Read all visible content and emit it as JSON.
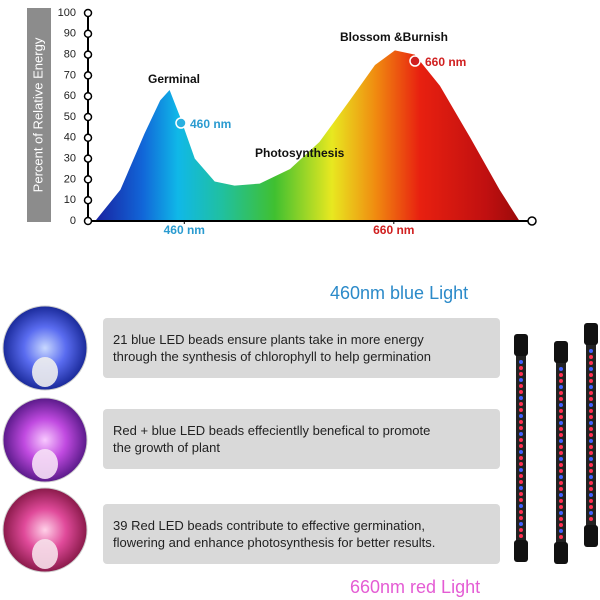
{
  "chart_data": {
    "type": "area",
    "ylabel": "Percent of Relative Energy",
    "x": [
      375,
      399,
      422,
      437,
      446,
      456,
      470,
      489,
      508,
      532,
      561,
      589,
      618,
      642,
      661,
      680,
      704,
      733,
      761,
      780
    ],
    "values": [
      0,
      15,
      42,
      58,
      63,
      50,
      30,
      19,
      17,
      18,
      25,
      38,
      58,
      75,
      82,
      80,
      65,
      40,
      15,
      0
    ],
    "xlim": [
      370,
      790
    ],
    "ylim": [
      0,
      100
    ],
    "yticks": [
      0,
      10,
      20,
      30,
      40,
      50,
      60,
      70,
      80,
      90,
      100
    ],
    "xticks": [
      {
        "value": 460,
        "label": "460 nm"
      },
      {
        "value": 660,
        "label": "660 nm"
      }
    ],
    "annotations": [
      "Germinal",
      "Photosynthesis",
      "Blossom &Burnish",
      "460 nm",
      "660 nm"
    ]
  },
  "blue_heading": "460nm blue Light",
  "features": [
    {
      "lines": [
        "21 blue LED beads ensure plants take in more energy",
        "through the synthesis of chlorophyll to help germination"
      ]
    },
    {
      "lines": [
        "Red + blue LED beads effecientlly benefical to promote",
        "the growth of  plant"
      ]
    },
    {
      "lines": [
        "39 Red LED beads contribute to effective germination,",
        "flowering and enhance photosynthesis for better results."
      ]
    }
  ],
  "red_heading": "660nm red Light"
}
